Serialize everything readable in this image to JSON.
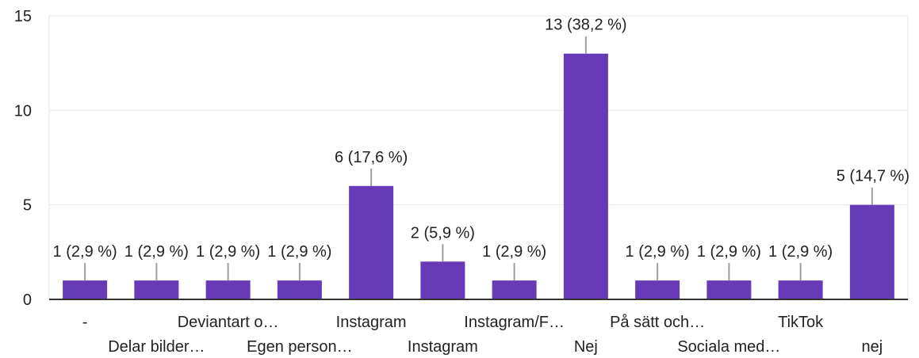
{
  "chart_data": {
    "type": "bar",
    "categories": [
      "-",
      "Delar bilder…",
      "Deviantart o…",
      "Egen person…",
      "Instagram",
      "Instagram",
      "Instagram/F…",
      "Nej",
      "På sätt och…",
      "Sociala med…",
      "TikTok",
      "nej"
    ],
    "values": [
      1,
      1,
      1,
      1,
      6,
      2,
      1,
      13,
      1,
      1,
      1,
      5
    ],
    "data_labels": [
      "1 (2,9 %)",
      "1 (2,9 %)",
      "1 (2,9 %)",
      "1 (2,9 %)",
      "6 (17,6 %)",
      "2 (5,9 %)",
      "1 (2,9 %)",
      "13 (38,2 %)",
      "1 (2,9 %)",
      "1 (2,9 %)",
      "1 (2,9 %)",
      "5 (14,7 %)"
    ],
    "yticks": [
      "0",
      "5",
      "10",
      "15"
    ],
    "ylim": [
      0,
      15
    ],
    "grid": true,
    "colors": {
      "bar": "#673ab7",
      "grid": "#e6e6e6",
      "axis": "#333333",
      "leader": "#9e9e9e"
    }
  }
}
